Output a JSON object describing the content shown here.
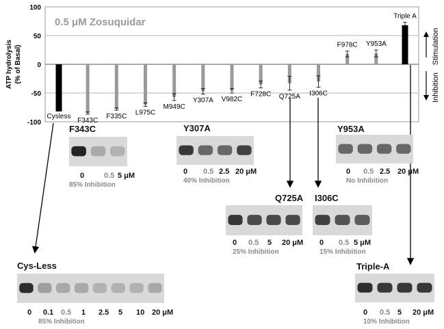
{
  "chart_data": {
    "type": "bar",
    "title": "0.5 μM Zosuquidar",
    "ylabel_line1": "ATP hydrolysis",
    "ylabel_line2": "(% of Basal)",
    "ylim": [
      -100,
      100
    ],
    "yticks": [
      "100",
      "50",
      "0",
      "-50",
      "-100"
    ],
    "categories": [
      "Cysless",
      "F343C",
      "F335C",
      "L975C",
      "M949C",
      "Y307A",
      "V982C",
      "F728C",
      "Q725A",
      "I306C",
      "F978C",
      "Y953A",
      "Triple A"
    ],
    "values": [
      -82,
      -85,
      -78,
      -70,
      -57,
      -47,
      -46,
      -35,
      -33,
      -30,
      18,
      19,
      68
    ],
    "errors": [
      0,
      2,
      2,
      3,
      6,
      5,
      4,
      6,
      12,
      10,
      5,
      6,
      5
    ],
    "bar_colors": [
      "#000000",
      "#9a9a9a",
      "#9a9a9a",
      "#9a9a9a",
      "#9a9a9a",
      "#9a9a9a",
      "#9a9a9a",
      "#9a9a9a",
      "#9a9a9a",
      "#9a9a9a",
      "#9a9a9a",
      "#9a9a9a",
      "#000000"
    ],
    "stimulation_label": "Stimulation",
    "inhibition_label": "Inhibition",
    "grid": true
  },
  "blots": [
    {
      "title": "F343C",
      "lanes": [
        "0",
        "0.5",
        "5 μM"
      ],
      "dim_lanes": [
        1
      ],
      "inhibition": "85% Inhibition",
      "intensities": [
        0.95,
        0.25,
        0.2
      ]
    },
    {
      "title": "Y307A",
      "lanes": [
        "0",
        "0.5",
        "2.5",
        "20 μM"
      ],
      "dim_lanes": [
        1
      ],
      "inhibition": "40% Inhibition",
      "intensities": [
        0.85,
        0.6,
        0.6,
        0.8
      ]
    },
    {
      "title": "Y953A",
      "lanes": [
        "0",
        "0.5",
        "2.5",
        "20 μM"
      ],
      "dim_lanes": [
        1
      ],
      "inhibition": "No Inhibition",
      "intensities": [
        0.6,
        0.6,
        0.6,
        0.6
      ]
    },
    {
      "title": "Q725A",
      "lanes": [
        "0",
        "0.5",
        "5",
        "20 μM"
      ],
      "dim_lanes": [
        1
      ],
      "inhibition": "25% Inhibition",
      "intensities": [
        0.85,
        0.75,
        0.75,
        0.75
      ]
    },
    {
      "title": "I306C",
      "lanes": [
        "0",
        "0.5",
        "5 μM"
      ],
      "dim_lanes": [
        1
      ],
      "inhibition": "15% Inhibition",
      "intensities": [
        0.8,
        0.7,
        0.65
      ]
    },
    {
      "title": "Cys-Less",
      "lanes": [
        "0",
        "0.1",
        "0.5",
        "1",
        "2.5",
        "5",
        "10",
        "20 μM"
      ],
      "dim_lanes": [
        2
      ],
      "inhibition": "85% Inhibition",
      "intensities": [
        0.9,
        0.3,
        0.25,
        0.25,
        0.2,
        0.2,
        0.2,
        0.25
      ]
    },
    {
      "title": "Triple-A",
      "lanes": [
        "0",
        "0.5",
        "5",
        "20 μM"
      ],
      "dim_lanes": [
        1
      ],
      "inhibition": "10% Inhibition",
      "intensities": [
        0.9,
        0.85,
        0.85,
        0.85
      ]
    }
  ]
}
